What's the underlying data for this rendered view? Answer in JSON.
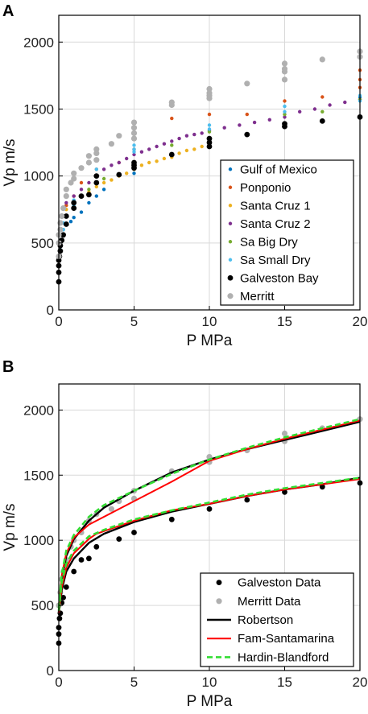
{
  "chart_data": [
    {
      "type": "scatter",
      "panel_label": "A",
      "xlabel": "P MPa",
      "ylabel": "Vp m/s",
      "xlim": [
        0,
        20
      ],
      "ylim": [
        0,
        2200
      ],
      "xticks": [
        0,
        5,
        10,
        15,
        20
      ],
      "yticks": [
        0,
        500,
        1000,
        1500,
        2000
      ],
      "grid": true,
      "legend_position": "bottom-right",
      "series": [
        {
          "name": "Gulf of Mexico",
          "color": "#0072BD",
          "size": 2.2,
          "x": [
            0.1,
            0.2,
            0.3,
            0.5,
            0.8,
            1,
            1.5,
            2,
            2.5,
            3,
            5,
            7.5,
            10,
            15,
            20
          ],
          "y": [
            520,
            560,
            600,
            640,
            660,
            690,
            730,
            800,
            850,
            900,
            1020,
            1150,
            1260,
            1390,
            1590
          ]
        },
        {
          "name": "Ponponio",
          "color": "#D95319",
          "size": 2.2,
          "x": [
            0.1,
            0.3,
            0.5,
            1,
            1.5,
            2.5,
            4,
            5,
            7.5,
            10,
            12.5,
            15,
            17.5,
            20,
            20,
            20
          ],
          "y": [
            600,
            700,
            780,
            850,
            950,
            1050,
            1100,
            1200,
            1430,
            1460,
            1460,
            1560,
            1590,
            1660,
            1720,
            1790
          ]
        },
        {
          "name": "Santa Cruz 1",
          "color": "#EDB120",
          "size": 2.2,
          "x": [
            0.5,
            1,
            1.5,
            2,
            2.5,
            3,
            3.5,
            4,
            4.5,
            5,
            5.5,
            6,
            6.5,
            7,
            7.5,
            8,
            8.5,
            9,
            9.5,
            10
          ],
          "y": [
            750,
            800,
            850,
            880,
            920,
            950,
            970,
            1000,
            1020,
            1050,
            1080,
            1100,
            1110,
            1130,
            1140,
            1170,
            1190,
            1200,
            1220,
            1240
          ]
        },
        {
          "name": "Santa Cruz 2",
          "color": "#7E2F8E",
          "size": 2.2,
          "x": [
            0.5,
            1,
            1.5,
            2,
            2.5,
            3,
            3.5,
            4,
            4.5,
            5,
            5.5,
            6,
            6.5,
            7,
            7.5,
            8,
            8.5,
            9,
            9.5,
            10,
            11,
            12,
            13,
            14,
            15,
            16,
            17,
            18,
            19,
            20
          ],
          "y": [
            800,
            850,
            900,
            950,
            1000,
            1050,
            1080,
            1100,
            1130,
            1160,
            1180,
            1200,
            1220,
            1240,
            1260,
            1280,
            1300,
            1310,
            1320,
            1340,
            1360,
            1380,
            1400,
            1420,
            1440,
            1480,
            1500,
            1530,
            1550,
            1570
          ]
        },
        {
          "name": "Sa Big Dry",
          "color": "#77AC30",
          "size": 2.2,
          "x": [
            0.1,
            0.5,
            1,
            2,
            3,
            5,
            7.5,
            10,
            15,
            17.5,
            20
          ],
          "y": [
            500,
            700,
            800,
            900,
            980,
            1100,
            1230,
            1330,
            1460,
            1480,
            1570
          ]
        },
        {
          "name": "Sa Small Dry",
          "color": "#4DBEEE",
          "size": 2.2,
          "x": [
            0.1,
            0.1,
            0.3,
            0.3,
            0.5,
            1,
            1,
            2.5,
            2.5,
            5,
            5,
            5,
            10,
            10,
            15,
            15,
            20,
            20
          ],
          "y": [
            450,
            500,
            600,
            650,
            700,
            780,
            820,
            1000,
            1050,
            1180,
            1200,
            1230,
            1350,
            1380,
            1480,
            1520,
            1560,
            1600
          ]
        },
        {
          "name": "Galveston Bay",
          "color": "#000000",
          "size": 3.4,
          "x": [
            0,
            0,
            0,
            0,
            0.05,
            0.1,
            0.1,
            0.2,
            0.3,
            0.5,
            0.5,
            1,
            1,
            1.5,
            2,
            2.5,
            2.5,
            4,
            5,
            5,
            5,
            7.5,
            10,
            10,
            10,
            12.5,
            15,
            15,
            17.5,
            20
          ],
          "y": [
            210,
            280,
            330,
            370,
            400,
            440,
            480,
            520,
            560,
            640,
            700,
            760,
            800,
            850,
            860,
            950,
            1000,
            1010,
            1060,
            1080,
            1100,
            1160,
            1220,
            1250,
            1280,
            1310,
            1370,
            1390,
            1410,
            1440
          ]
        },
        {
          "name": "Merritt",
          "color": "#b0b0b0",
          "size": 3.6,
          "x": [
            0,
            0,
            0,
            0.1,
            0.1,
            0.2,
            0.3,
            0.5,
            0.5,
            0.8,
            1,
            1,
            1.5,
            2,
            2,
            2.5,
            2.5,
            2.5,
            3.5,
            4,
            5,
            5,
            5,
            5,
            7.5,
            7.5,
            10,
            10,
            10,
            10,
            12.5,
            15,
            15,
            15,
            15,
            17.5,
            20,
            20
          ],
          "y": [
            400,
            500,
            560,
            600,
            650,
            700,
            760,
            850,
            900,
            950,
            980,
            1020,
            1060,
            1100,
            1150,
            1120,
            1170,
            1200,
            1240,
            1300,
            1280,
            1320,
            1360,
            1400,
            1530,
            1550,
            1580,
            1600,
            1620,
            1650,
            1690,
            1720,
            1780,
            1800,
            1840,
            1870,
            1890,
            1930
          ]
        }
      ]
    },
    {
      "type": "line",
      "panel_label": "B",
      "xlabel": "P MPa",
      "ylabel": "Vp m/s",
      "xlim": [
        0,
        20
      ],
      "ylim": [
        0,
        2200
      ],
      "xticks": [
        0,
        5,
        10,
        15,
        20
      ],
      "yticks": [
        0,
        500,
        1000,
        1500,
        2000
      ],
      "grid": true,
      "legend_position": "bottom-right",
      "series": [
        {
          "name": "Galveston Data",
          "kind": "points",
          "color": "#000000",
          "size": 3.4,
          "x": [
            0,
            0,
            0,
            0.05,
            0.1,
            0.2,
            0.3,
            0.5,
            1,
            1.5,
            2,
            2.5,
            4,
            5,
            7.5,
            10,
            12.5,
            15,
            17.5,
            20
          ],
          "y": [
            210,
            280,
            330,
            400,
            440,
            520,
            560,
            640,
            760,
            850,
            860,
            950,
            1010,
            1060,
            1160,
            1240,
            1310,
            1370,
            1410,
            1440
          ]
        },
        {
          "name": "Merritt Data",
          "kind": "points",
          "color": "#b0b0b0",
          "size": 3.6,
          "x": [
            0,
            0.1,
            0.2,
            0.3,
            0.5,
            0.8,
            1,
            1.5,
            2,
            2.5,
            3.5,
            4,
            5,
            5,
            7.5,
            10,
            10,
            12.5,
            15,
            15,
            17.5,
            20
          ],
          "y": [
            500,
            600,
            700,
            760,
            850,
            950,
            1000,
            1060,
            1150,
            1200,
            1240,
            1300,
            1320,
            1380,
            1530,
            1600,
            1640,
            1690,
            1760,
            1820,
            1860,
            1930
          ]
        },
        {
          "name": "Robertson",
          "kind": "line",
          "color": "#000000",
          "width": 2.4,
          "dash": "",
          "x": [
            0,
            0.2,
            0.5,
            1,
            2,
            3,
            5,
            7.5,
            10,
            12.5,
            15,
            17.5,
            20
          ],
          "y": [
            440,
            620,
            760,
            860,
            980,
            1050,
            1140,
            1220,
            1280,
            1340,
            1390,
            1430,
            1480
          ]
        },
        {
          "name": "Robertson",
          "kind": "line",
          "color": "#000000",
          "width": 2.4,
          "dash": "",
          "x": [
            0,
            0.2,
            0.5,
            1,
            2,
            3,
            5,
            7.5,
            10,
            12.5,
            15,
            17.5,
            20
          ],
          "y": [
            450,
            700,
            880,
            1010,
            1150,
            1250,
            1380,
            1520,
            1620,
            1700,
            1770,
            1840,
            1910
          ]
        },
        {
          "name": "Fam-Santamarina",
          "kind": "line",
          "color": "#ff0000",
          "width": 2,
          "dash": "",
          "x": [
            0,
            0.2,
            0.5,
            1,
            2,
            2.5,
            5,
            7.5,
            10,
            12.5,
            15,
            17.5,
            20
          ],
          "y": [
            440,
            640,
            790,
            900,
            1010,
            1050,
            1150,
            1230,
            1280,
            1340,
            1390,
            1430,
            1470
          ]
        },
        {
          "name": "Fam-Santamarina",
          "kind": "line",
          "color": "#ff0000",
          "width": 2,
          "dash": "",
          "x": [
            0,
            0.2,
            0.5,
            1,
            2,
            2.5,
            5,
            7.5,
            10,
            12.5,
            15,
            17.5,
            20
          ],
          "y": [
            470,
            730,
            900,
            1020,
            1120,
            1150,
            1300,
            1450,
            1610,
            1700,
            1780,
            1850,
            1920
          ]
        },
        {
          "name": "Hardin-Blandford",
          "kind": "line",
          "color": "#33dd33",
          "width": 2.6,
          "dash": "7,4",
          "x": [
            0,
            0.2,
            0.5,
            1,
            2,
            3,
            5,
            7.5,
            10,
            12.5,
            15,
            17.5,
            20
          ],
          "y": [
            460,
            680,
            820,
            920,
            1030,
            1080,
            1160,
            1230,
            1290,
            1350,
            1400,
            1440,
            1480
          ]
        },
        {
          "name": "Hardin-Blandford",
          "kind": "line",
          "color": "#33dd33",
          "width": 2.6,
          "dash": "7,4",
          "x": [
            0,
            0.2,
            0.5,
            1,
            2,
            3,
            5,
            7.5,
            10,
            12.5,
            15,
            17.5,
            20
          ],
          "y": [
            480,
            740,
            920,
            1040,
            1180,
            1270,
            1380,
            1510,
            1620,
            1710,
            1790,
            1860,
            1930
          ]
        }
      ]
    }
  ]
}
